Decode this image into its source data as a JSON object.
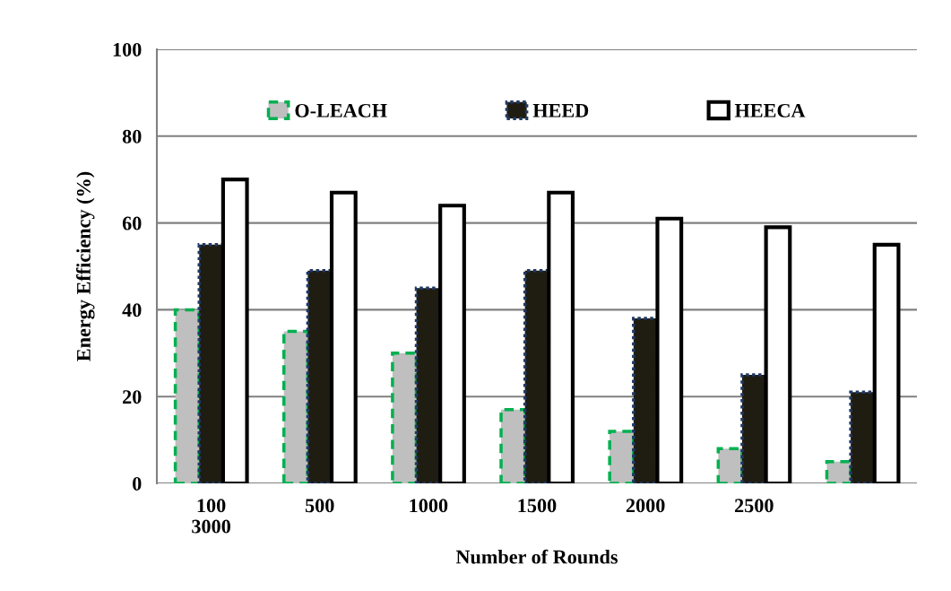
{
  "chart_data": {
    "type": "bar",
    "xlabel": "Number of Rounds",
    "ylabel": "Energy Efficiency (%)",
    "categories": [
      "100\n3000",
      "500",
      "1000",
      "1500",
      "2000",
      "2500",
      null
    ],
    "series": [
      {
        "name": "O-LEACH",
        "color": "#bfbfbf",
        "line_style": "dashed",
        "values": [
          40,
          35,
          30,
          17,
          12,
          8,
          5
        ]
      },
      {
        "name": "HEED",
        "color": "#1f1c12",
        "line_style": "dotted",
        "values": [
          55,
          49,
          45,
          49,
          38,
          25,
          21
        ]
      },
      {
        "name": "HEECA",
        "color": "#ffffff",
        "line_style": "solid",
        "values": [
          70,
          67,
          64,
          67,
          61,
          59,
          55
        ]
      }
    ],
    "ylim": [
      0,
      100
    ],
    "yticks": [
      0,
      20,
      40,
      60,
      80,
      100
    ],
    "grid": "y",
    "legend": "top"
  }
}
